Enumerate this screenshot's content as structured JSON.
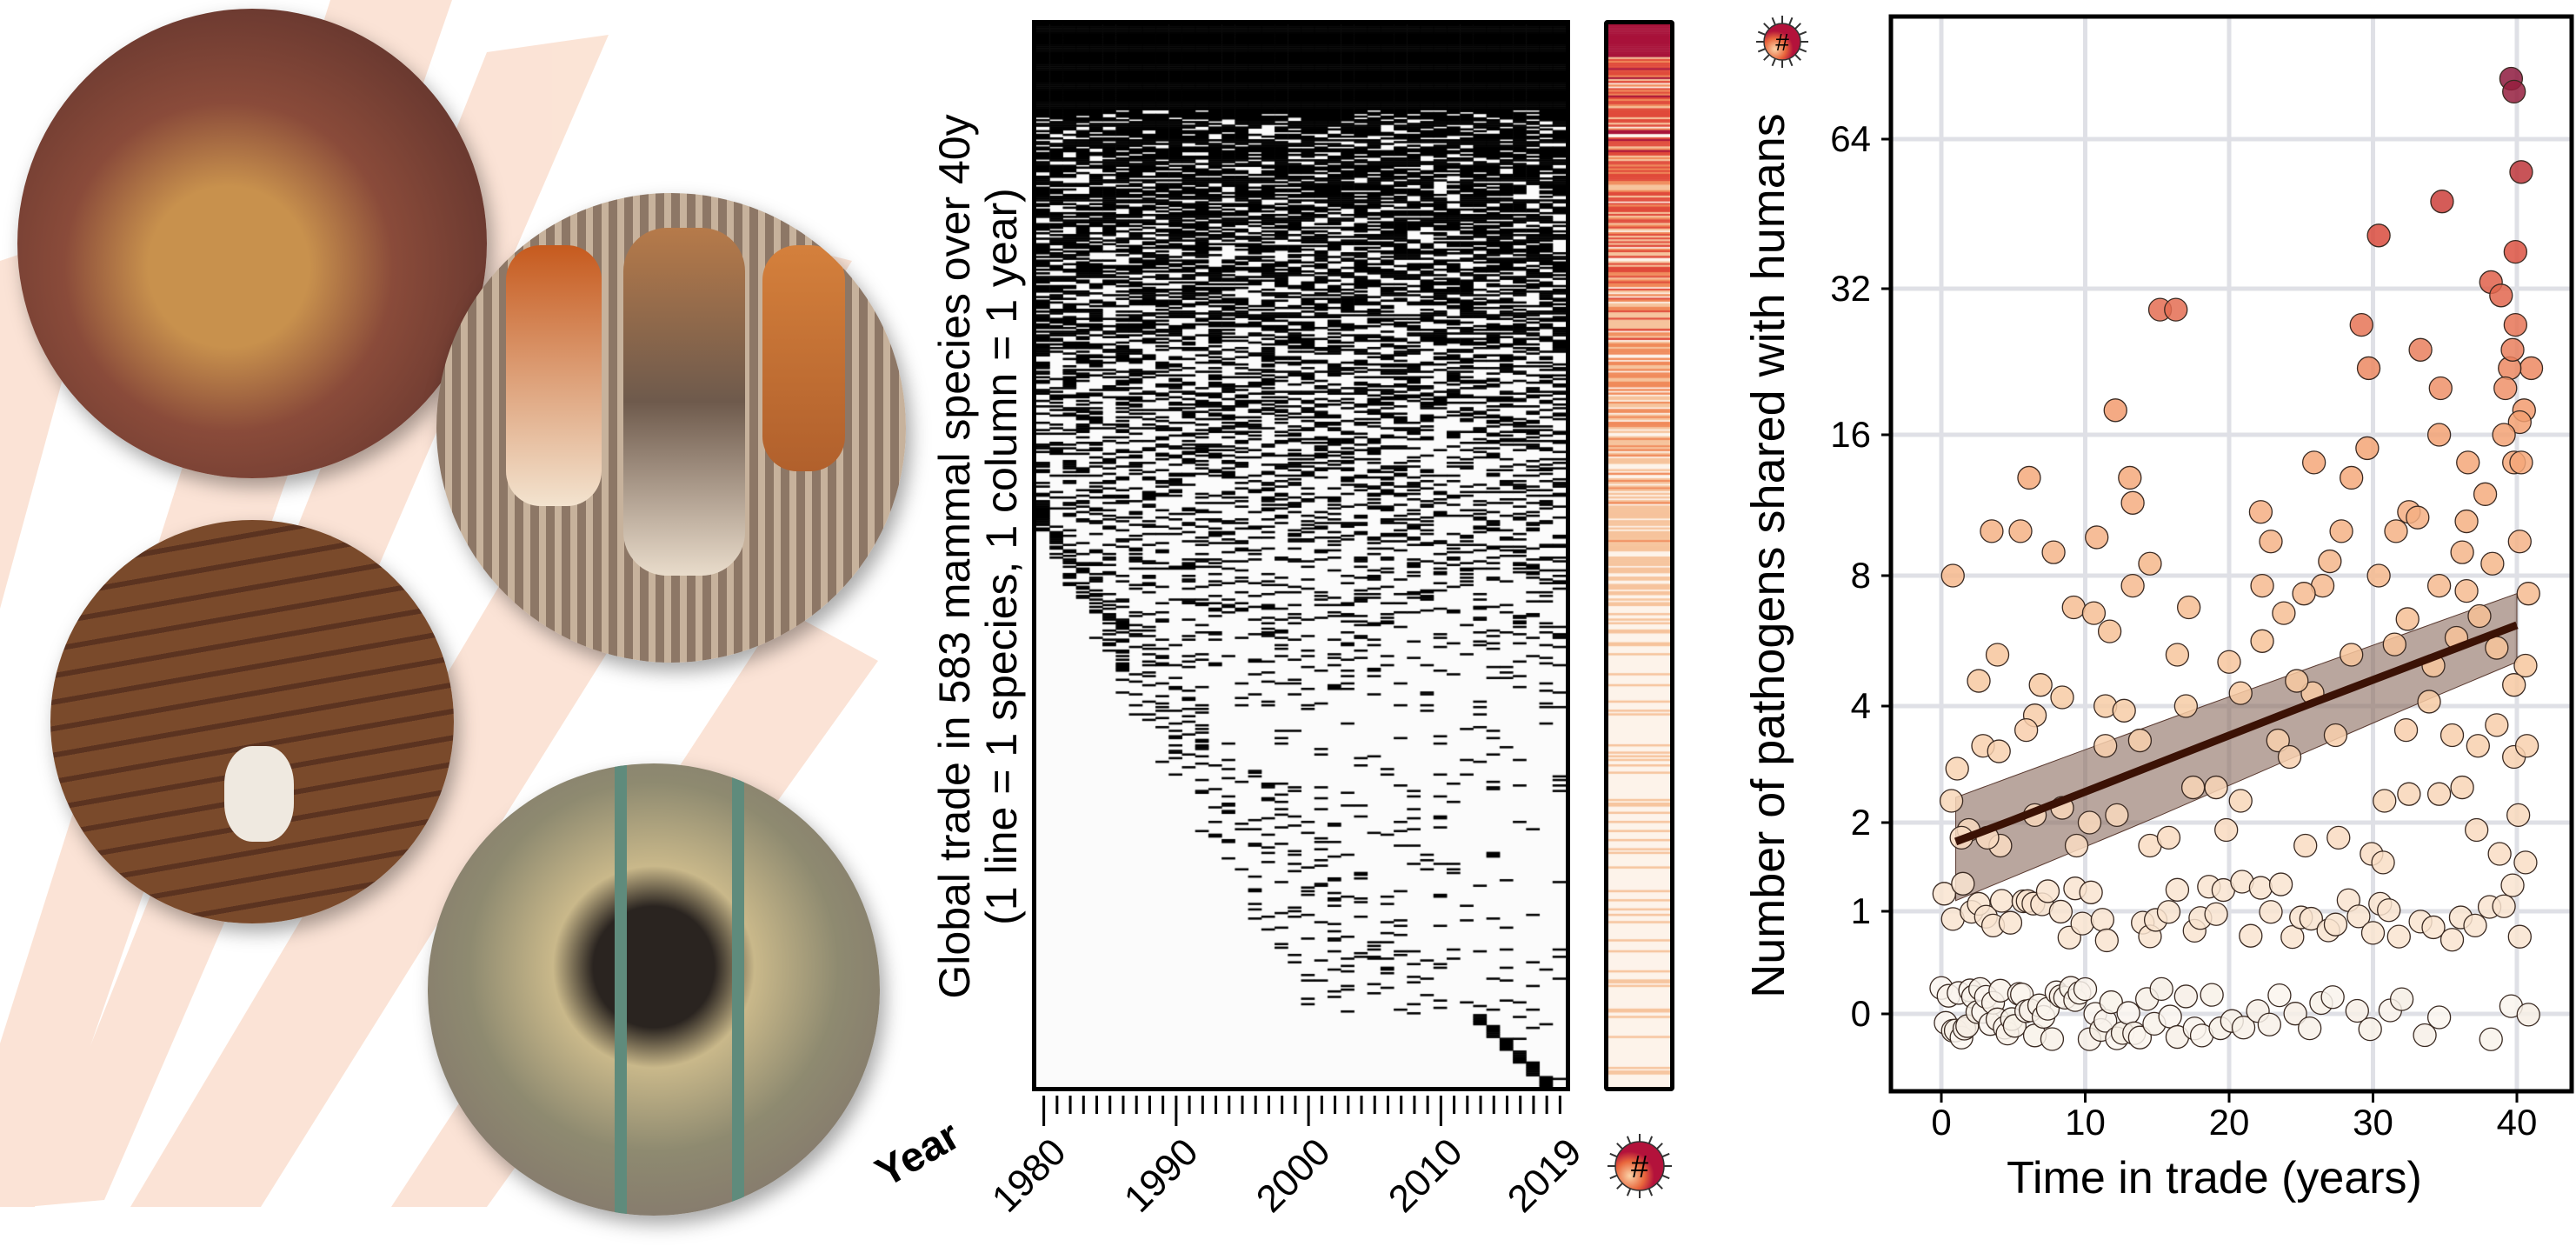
{
  "panel_b": {
    "ylabel_line1": "Global trade in 583 mammal species over 40y",
    "ylabel_line2": "(1 line = 1 species, 1 column = 1 year)",
    "year_title": "Year",
    "year_ticks": [
      "1980",
      "1990",
      "2000",
      "2010",
      "2019"
    ],
    "n_species": 583,
    "year_start": 1980,
    "year_end": 2019,
    "icon_symbol": "#"
  },
  "chart_data": {
    "type": "scatter",
    "title": "",
    "xlabel": "Time in trade (years)",
    "ylabel": "Number of pathogens shared with humans",
    "xlim": [
      -2.5,
      42.5
    ],
    "ylim_note": "log scale of (y+1)",
    "x_ticks": [
      "0",
      "10",
      "20",
      "30",
      "40"
    ],
    "y_ticks": [
      "0",
      "1",
      "2",
      "4",
      "8",
      "16",
      "32",
      "64"
    ],
    "grid": true,
    "icon_symbol": "#",
    "points": [
      [
        39.6,
        85
      ],
      [
        39.8,
        80
      ],
      [
        40.3,
        55
      ],
      [
        34.8,
        48
      ],
      [
        30.4,
        41
      ],
      [
        39.9,
        38
      ],
      [
        38.2,
        33
      ],
      [
        38.9,
        31
      ],
      [
        15.2,
        29
      ],
      [
        16.3,
        29
      ],
      [
        29.2,
        27
      ],
      [
        39.9,
        27
      ],
      [
        33.3,
        24
      ],
      [
        29.7,
        22
      ],
      [
        34.7,
        20
      ],
      [
        12.1,
        18
      ],
      [
        41,
        22
      ],
      [
        40.5,
        18
      ],
      [
        39.5,
        22
      ],
      [
        39.7,
        24
      ],
      [
        39.2,
        20
      ],
      [
        40.2,
        17
      ],
      [
        34.6,
        16
      ],
      [
        39.1,
        16
      ],
      [
        6.1,
        13
      ],
      [
        13.1,
        13
      ],
      [
        25.9,
        14
      ],
      [
        29.6,
        15
      ],
      [
        28.5,
        13
      ],
      [
        36.6,
        14
      ],
      [
        37.8,
        12
      ],
      [
        39.8,
        14
      ],
      [
        40.3,
        14
      ],
      [
        13.3,
        11.5
      ],
      [
        22.2,
        11
      ],
      [
        32.5,
        11
      ],
      [
        33.1,
        10.7
      ],
      [
        3.5,
        10
      ],
      [
        5.5,
        10
      ],
      [
        10.8,
        9.7
      ],
      [
        7.8,
        9
      ],
      [
        14.5,
        8.5
      ],
      [
        22.9,
        9.5
      ],
      [
        27,
        8.6
      ],
      [
        27.8,
        10
      ],
      [
        31.6,
        10
      ],
      [
        36.5,
        10.5
      ],
      [
        36.2,
        9
      ],
      [
        38.3,
        8.5
      ],
      [
        40.2,
        9.5
      ],
      [
        0.8,
        8
      ],
      [
        13.3,
        7.6
      ],
      [
        22.3,
        7.6
      ],
      [
        26.5,
        7.6
      ],
      [
        30.4,
        8
      ],
      [
        34.6,
        7.6
      ],
      [
        36.5,
        7.4
      ],
      [
        9.2,
        6.8
      ],
      [
        10.6,
        6.6
      ],
      [
        11.7,
        6
      ],
      [
        17.2,
        6.8
      ],
      [
        23.8,
        6.6
      ],
      [
        25.2,
        7.3
      ],
      [
        32.4,
        6.4
      ],
      [
        37.4,
        6.5
      ],
      [
        40.8,
        7.3
      ],
      [
        16.4,
        5.3
      ],
      [
        3.9,
        5.3
      ],
      [
        2.6,
        4.6
      ],
      [
        6.9,
        4.5
      ],
      [
        8.4,
        4.2
      ],
      [
        11.4,
        4
      ],
      [
        12.7,
        3.9
      ],
      [
        17,
        4
      ],
      [
        20.8,
        4.3
      ],
      [
        25.8,
        4.3
      ],
      [
        28.5,
        5.3
      ],
      [
        24.7,
        4.6
      ],
      [
        22.3,
        5.7
      ],
      [
        20,
        5.1
      ],
      [
        31.5,
        5.6
      ],
      [
        34.2,
        5
      ],
      [
        35.8,
        5.8
      ],
      [
        38.6,
        5.5
      ],
      [
        40.6,
        5
      ],
      [
        39.8,
        4.5
      ],
      [
        1.1,
        2.8
      ],
      [
        2.9,
        3.2
      ],
      [
        4,
        3.1
      ],
      [
        6.5,
        3.8
      ],
      [
        5.9,
        3.5
      ],
      [
        13.8,
        3.3
      ],
      [
        11.4,
        3.2
      ],
      [
        19.1,
        2.5
      ],
      [
        23.4,
        3.3
      ],
      [
        27.4,
        3.4
      ],
      [
        32.3,
        3.5
      ],
      [
        33.9,
        4.1
      ],
      [
        35.5,
        3.4
      ],
      [
        37.3,
        3.2
      ],
      [
        38.6,
        3.6
      ],
      [
        39.8,
        3
      ],
      [
        40.7,
        3.2
      ],
      [
        0.7,
        2.3
      ],
      [
        1.9,
        1.9
      ],
      [
        4.1,
        1.7
      ],
      [
        6.5,
        2.1
      ],
      [
        8.4,
        2.2
      ],
      [
        10.3,
        2
      ],
      [
        12.2,
        2.1
      ],
      [
        17.5,
        2.5
      ],
      [
        20.8,
        2.3
      ],
      [
        24.2,
        3
      ],
      [
        30.8,
        2.3
      ],
      [
        32.5,
        2.4
      ],
      [
        34.6,
        2.4
      ],
      [
        36.2,
        2.5
      ],
      [
        40.1,
        2.1
      ],
      [
        1.4,
        1.8
      ],
      [
        3.2,
        1.8
      ],
      [
        9.4,
        1.7
      ],
      [
        14.5,
        1.7
      ],
      [
        15.8,
        1.8
      ],
      [
        19.8,
        1.9
      ],
      [
        25.3,
        1.7
      ],
      [
        27.6,
        1.8
      ],
      [
        29.9,
        1.6
      ],
      [
        30.7,
        1.5
      ],
      [
        37.2,
        1.9
      ],
      [
        38.8,
        1.6
      ],
      [
        40.6,
        1.5
      ]
    ],
    "ones_x": [
      0.2,
      0.8,
      1.5,
      2.1,
      2.6,
      3.1,
      3.6,
      4.2,
      4.8,
      5.7,
      6.0,
      6.4,
      7.0,
      7.4,
      8.3,
      8.9,
      9.3,
      9.8,
      10.4,
      11.2,
      11.5,
      14.0,
      14.5,
      14.9,
      15.8,
      16.4,
      17.6,
      18.0,
      18.6,
      19.1,
      19.6,
      20.9,
      21.5,
      22.2,
      22.9,
      23.6,
      24.4,
      25.0,
      25.7,
      26.9,
      27.4,
      28.3,
      29.0,
      30.0,
      30.5,
      31.1,
      31.8,
      33.3,
      34.2,
      35.5,
      36.1,
      37.1,
      38.1,
      39.1,
      39.7,
      40.2
    ],
    "zeros_x": [
      0.0,
      0.3,
      0.5,
      0.8,
      1.0,
      1.2,
      1.4,
      1.6,
      1.8,
      2.0,
      2.2,
      2.5,
      2.7,
      2.9,
      3.1,
      3.4,
      3.6,
      3.9,
      4.1,
      4.4,
      4.6,
      4.9,
      5.1,
      5.4,
      5.6,
      5.9,
      6.2,
      6.5,
      6.8,
      7.1,
      7.4,
      7.7,
      8.0,
      8.3,
      8.6,
      9.0,
      9.3,
      9.6,
      10.0,
      10.3,
      10.7,
      11.1,
      11.4,
      11.8,
      12.2,
      12.6,
      13.0,
      13.4,
      13.8,
      14.3,
      14.8,
      15.3,
      15.9,
      16.4,
      17.0,
      17.6,
      18.1,
      18.8,
      19.4,
      20.2,
      21.0,
      22.0,
      22.8,
      23.5,
      24.6,
      25.6,
      26.4,
      27.2,
      28.9,
      29.8,
      31.2,
      32.0,
      33.6,
      34.6,
      38.2,
      39.6,
      40.8
    ],
    "fit": {
      "x": [
        1,
        40
      ],
      "y": [
        1.75,
        6.2
      ],
      "lower": [
        1.1,
        5.1
      ],
      "upper": [
        2.35,
        7.3
      ]
    },
    "colors": {
      "low": "#fbf6f0",
      "mid": "#f3a071",
      "high": "#d8463a",
      "max": "#8e1a3e",
      "fit_line": "#3b1205",
      "fit_band": "#8b6a5e"
    }
  }
}
